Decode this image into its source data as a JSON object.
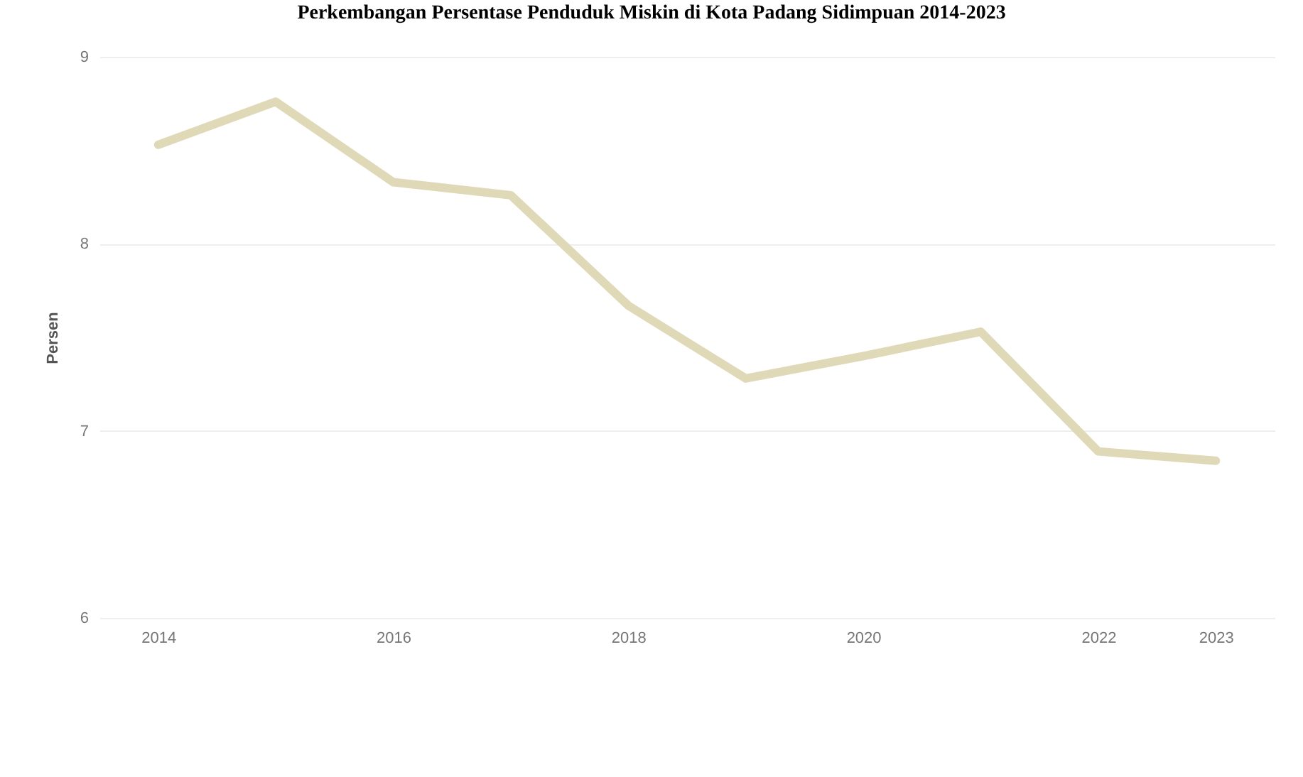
{
  "chart_data": {
    "type": "line",
    "title": "Perkembangan Persentase Penduduk Miskin di Kota Padang Sidimpuan 2014-2023",
    "ylabel": "Persen",
    "x": [
      2014,
      2015,
      2016,
      2017,
      2018,
      2019,
      2020,
      2021,
      2022,
      2023
    ],
    "series": [
      {
        "color": "#e0d9b8",
        "values": [
          8.53,
          8.76,
          8.33,
          8.26,
          7.67,
          7.28,
          7.4,
          7.53,
          6.89,
          6.84
        ]
      }
    ],
    "xlim": [
      2013.5,
      2023.5
    ],
    "xticks": [
      2014,
      2016,
      2018,
      2020,
      2022,
      2023
    ],
    "ylim": [
      6,
      9
    ],
    "yticks": [
      6,
      7,
      8,
      9
    ],
    "grid": "y",
    "line_style": "solid"
  }
}
